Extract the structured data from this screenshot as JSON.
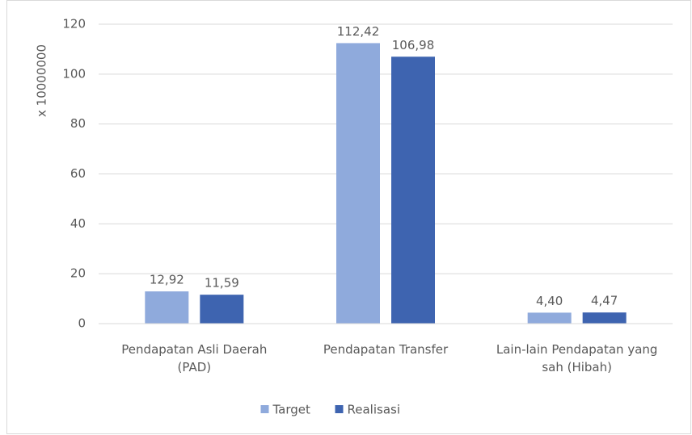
{
  "chart_data": {
    "type": "bar",
    "y_label": "x 10000000",
    "categories": [
      "Pendapatan Asli Daerah (PAD)",
      "Pendapatan Transfer",
      "Lain-lain Pendapatan yang sah (Hibah)"
    ],
    "series": [
      {
        "name": "Target",
        "color": "#8faadc",
        "values": [
          12.92,
          112.42,
          4.4
        ],
        "value_labels": [
          "12,92",
          "112,42",
          "4,40"
        ]
      },
      {
        "name": "Realisasi",
        "color": "#3e64b0",
        "values": [
          11.59,
          106.98,
          4.47
        ],
        "value_labels": [
          "11,59",
          "106,98",
          "4,47"
        ]
      }
    ],
    "ylim": [
      0,
      120
    ],
    "yticks": [
      0,
      20,
      40,
      60,
      80,
      100,
      120
    ],
    "grid": true,
    "legend": "bottom"
  }
}
